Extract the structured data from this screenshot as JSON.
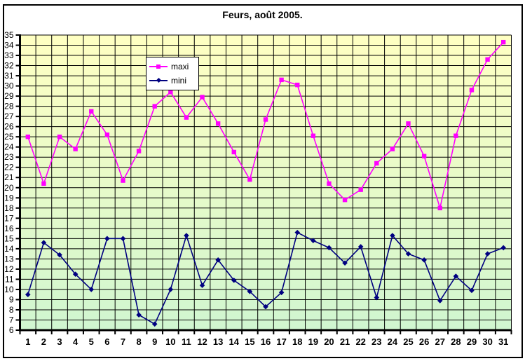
{
  "chart_data": {
    "type": "line",
    "title": "Feurs, août 2005.",
    "xlabel": "",
    "ylabel": "",
    "categories": [
      1,
      2,
      3,
      4,
      5,
      6,
      7,
      8,
      9,
      10,
      11,
      12,
      13,
      14,
      15,
      16,
      17,
      18,
      19,
      20,
      21,
      22,
      23,
      24,
      25,
      26,
      27,
      28,
      29,
      30,
      31
    ],
    "series": [
      {
        "name": "maxi",
        "color": "#FF00FF",
        "marker": "square",
        "values": [
          25.0,
          20.4,
          25.0,
          23.8,
          27.5,
          25.2,
          20.7,
          23.6,
          28.0,
          29.4,
          26.9,
          28.9,
          26.3,
          23.5,
          20.8,
          26.7,
          30.6,
          30.1,
          25.1,
          20.4,
          18.8,
          19.8,
          22.4,
          23.8,
          26.3,
          23.1,
          18.0,
          25.1,
          29.6,
          32.6,
          34.3
        ]
      },
      {
        "name": "mini",
        "color": "#000080",
        "marker": "diamond",
        "values": [
          9.5,
          14.6,
          13.4,
          11.5,
          10.0,
          15.0,
          15.0,
          7.5,
          6.6,
          10.0,
          15.3,
          10.4,
          12.9,
          10.9,
          9.8,
          8.3,
          9.7,
          15.6,
          14.8,
          14.1,
          12.6,
          14.2,
          9.2,
          15.3,
          13.5,
          12.9,
          8.9,
          11.3,
          9.9,
          13.5,
          14.1
        ]
      }
    ],
    "ylim": [
      6,
      35
    ],
    "ytick_step": 1,
    "grid": "both",
    "grid_color": "#000000",
    "axis_color": "#000000",
    "legend_position": "inside-top-left",
    "plot_background": {
      "top": "#FFFFC2",
      "bottom": "#D0F6D0"
    }
  }
}
